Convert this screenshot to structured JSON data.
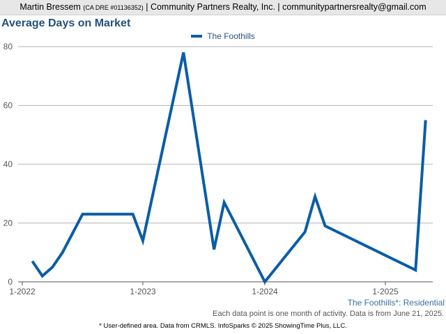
{
  "header": {
    "agent_name": "Martin Bressem",
    "license": "(CA DRE #01136352)",
    "company": "| Community Partners Realty, Inc. |",
    "email": "communitypartnersrealty@gmail.com"
  },
  "footer": {
    "area_label": "The Foothills*: Residential",
    "data_note": "Each data point is one month of activity. Data is from June 21, 2025.",
    "disclaimer": "* User-defined area. Data from CRMLS. InfoSparks © 2025 ShowingTime Plus, LLC."
  },
  "colors": {
    "series": "#0b5da6",
    "title": "#24527a",
    "grid": "#b5b5b5"
  },
  "chart_data": {
    "type": "line",
    "title": "Average Days on Market",
    "xlabel": "",
    "ylabel": "",
    "ylim": [
      0,
      80
    ],
    "y_ticks": [
      0,
      20,
      40,
      60,
      80
    ],
    "x_ticks": [
      "1-2022",
      "1-2023",
      "1-2024",
      "1-2025"
    ],
    "x_range": [
      "2022-01",
      "2025-06"
    ],
    "grid": true,
    "legend_position": "top-center",
    "series": [
      {
        "name": "The Foothills",
        "points": [
          [
            "2022-02",
            7
          ],
          [
            "2022-03",
            2
          ],
          [
            "2022-04",
            5
          ],
          [
            "2022-05",
            10
          ],
          [
            "2022-07",
            23
          ],
          [
            "2022-12",
            23
          ],
          [
            "2023-01",
            14
          ],
          [
            "2023-05",
            78
          ],
          [
            "2023-08",
            11
          ],
          [
            "2023-09",
            27
          ],
          [
            "2024-01",
            0
          ],
          [
            "2024-05",
            17
          ],
          [
            "2024-06",
            29
          ],
          [
            "2024-07",
            19
          ],
          [
            "2025-04",
            4
          ],
          [
            "2025-05",
            55
          ]
        ]
      }
    ]
  }
}
